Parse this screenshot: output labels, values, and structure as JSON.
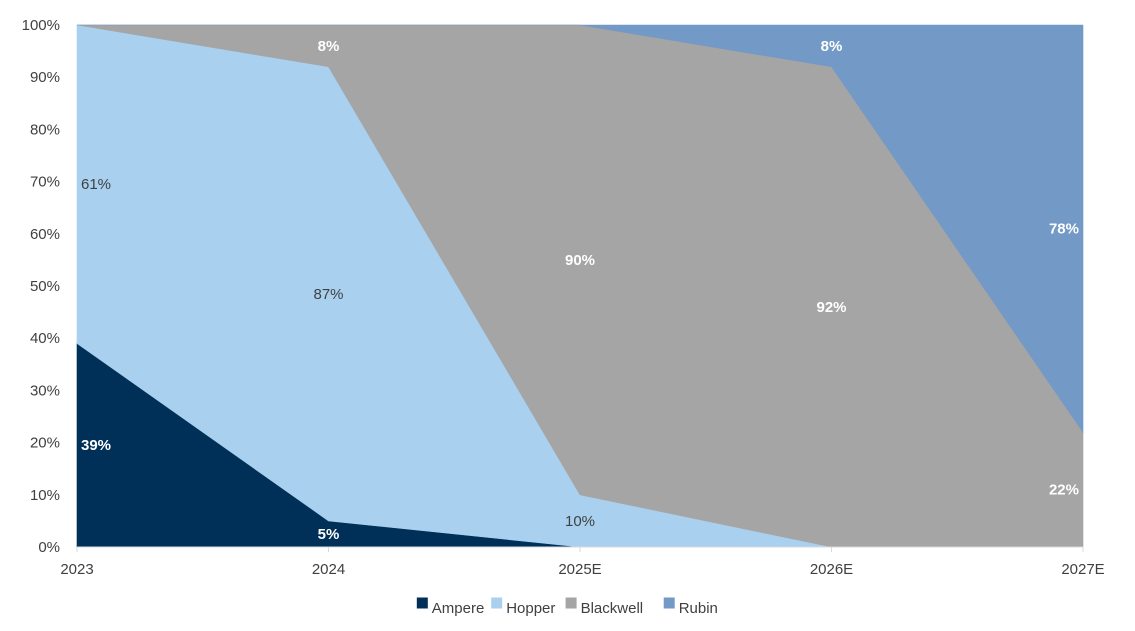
{
  "chart_data": {
    "type": "area",
    "stacked": true,
    "percent": true,
    "title": "",
    "xlabel": "",
    "ylabel": "",
    "x": [
      "2023",
      "2024",
      "2025E",
      "2026E",
      "2027E"
    ],
    "ylim": [
      0,
      100
    ],
    "yticks": [
      "0%",
      "10%",
      "20%",
      "30%",
      "40%",
      "50%",
      "60%",
      "70%",
      "80%",
      "90%",
      "100%"
    ],
    "grid": false,
    "legend_position": "bottom",
    "series": [
      {
        "name": "Ampere",
        "color": "#003057",
        "label_color": "#ffffff",
        "values": [
          39,
          5,
          0,
          0,
          0
        ],
        "labels": [
          "39%",
          "5%",
          null,
          null,
          null
        ]
      },
      {
        "name": "Hopper",
        "color": "#a9d1ef",
        "label_color": "#404040",
        "values": [
          61,
          87,
          10,
          0,
          0
        ],
        "labels": [
          "61%",
          "87%",
          "10%",
          null,
          null
        ]
      },
      {
        "name": "Blackwell",
        "color": "#a5a5a5",
        "label_color": "#ffffff",
        "values": [
          0,
          8,
          90,
          92,
          22
        ],
        "labels": [
          null,
          "8%",
          "90%",
          "92%",
          "22%"
        ]
      },
      {
        "name": "Rubin",
        "color": "#7399c6",
        "label_color": "#ffffff",
        "values": [
          0,
          0,
          0,
          8,
          78
        ],
        "labels": [
          null,
          null,
          null,
          "8%",
          "78%"
        ]
      }
    ]
  }
}
